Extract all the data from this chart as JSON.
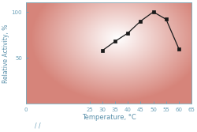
{
  "x": [
    30,
    35,
    40,
    45,
    50,
    55,
    60
  ],
  "y": [
    58,
    68,
    77,
    90,
    100,
    92,
    60
  ],
  "xlim": [
    0,
    65
  ],
  "ylim": [
    0,
    110
  ],
  "xticks": [
    0,
    25,
    30,
    35,
    40,
    45,
    50,
    55,
    60,
    65
  ],
  "xtick_labels": [
    "0",
    "25",
    "30",
    "35",
    "40",
    "45",
    "50",
    "55",
    "60",
    "65"
  ],
  "yticks": [
    50,
    100
  ],
  "ytick_labels": [
    "50",
    "100"
  ],
  "xlabel": "Temperature, °C",
  "ylabel": "Relative Activity, %",
  "line_color": "#1a1a1a",
  "marker": "s",
  "marker_size": 3.5,
  "marker_color": "#1a1a1a",
  "axis_color": "#7aafc0",
  "tick_color": "#6aa0b8",
  "label_color": "#5a90aa"
}
